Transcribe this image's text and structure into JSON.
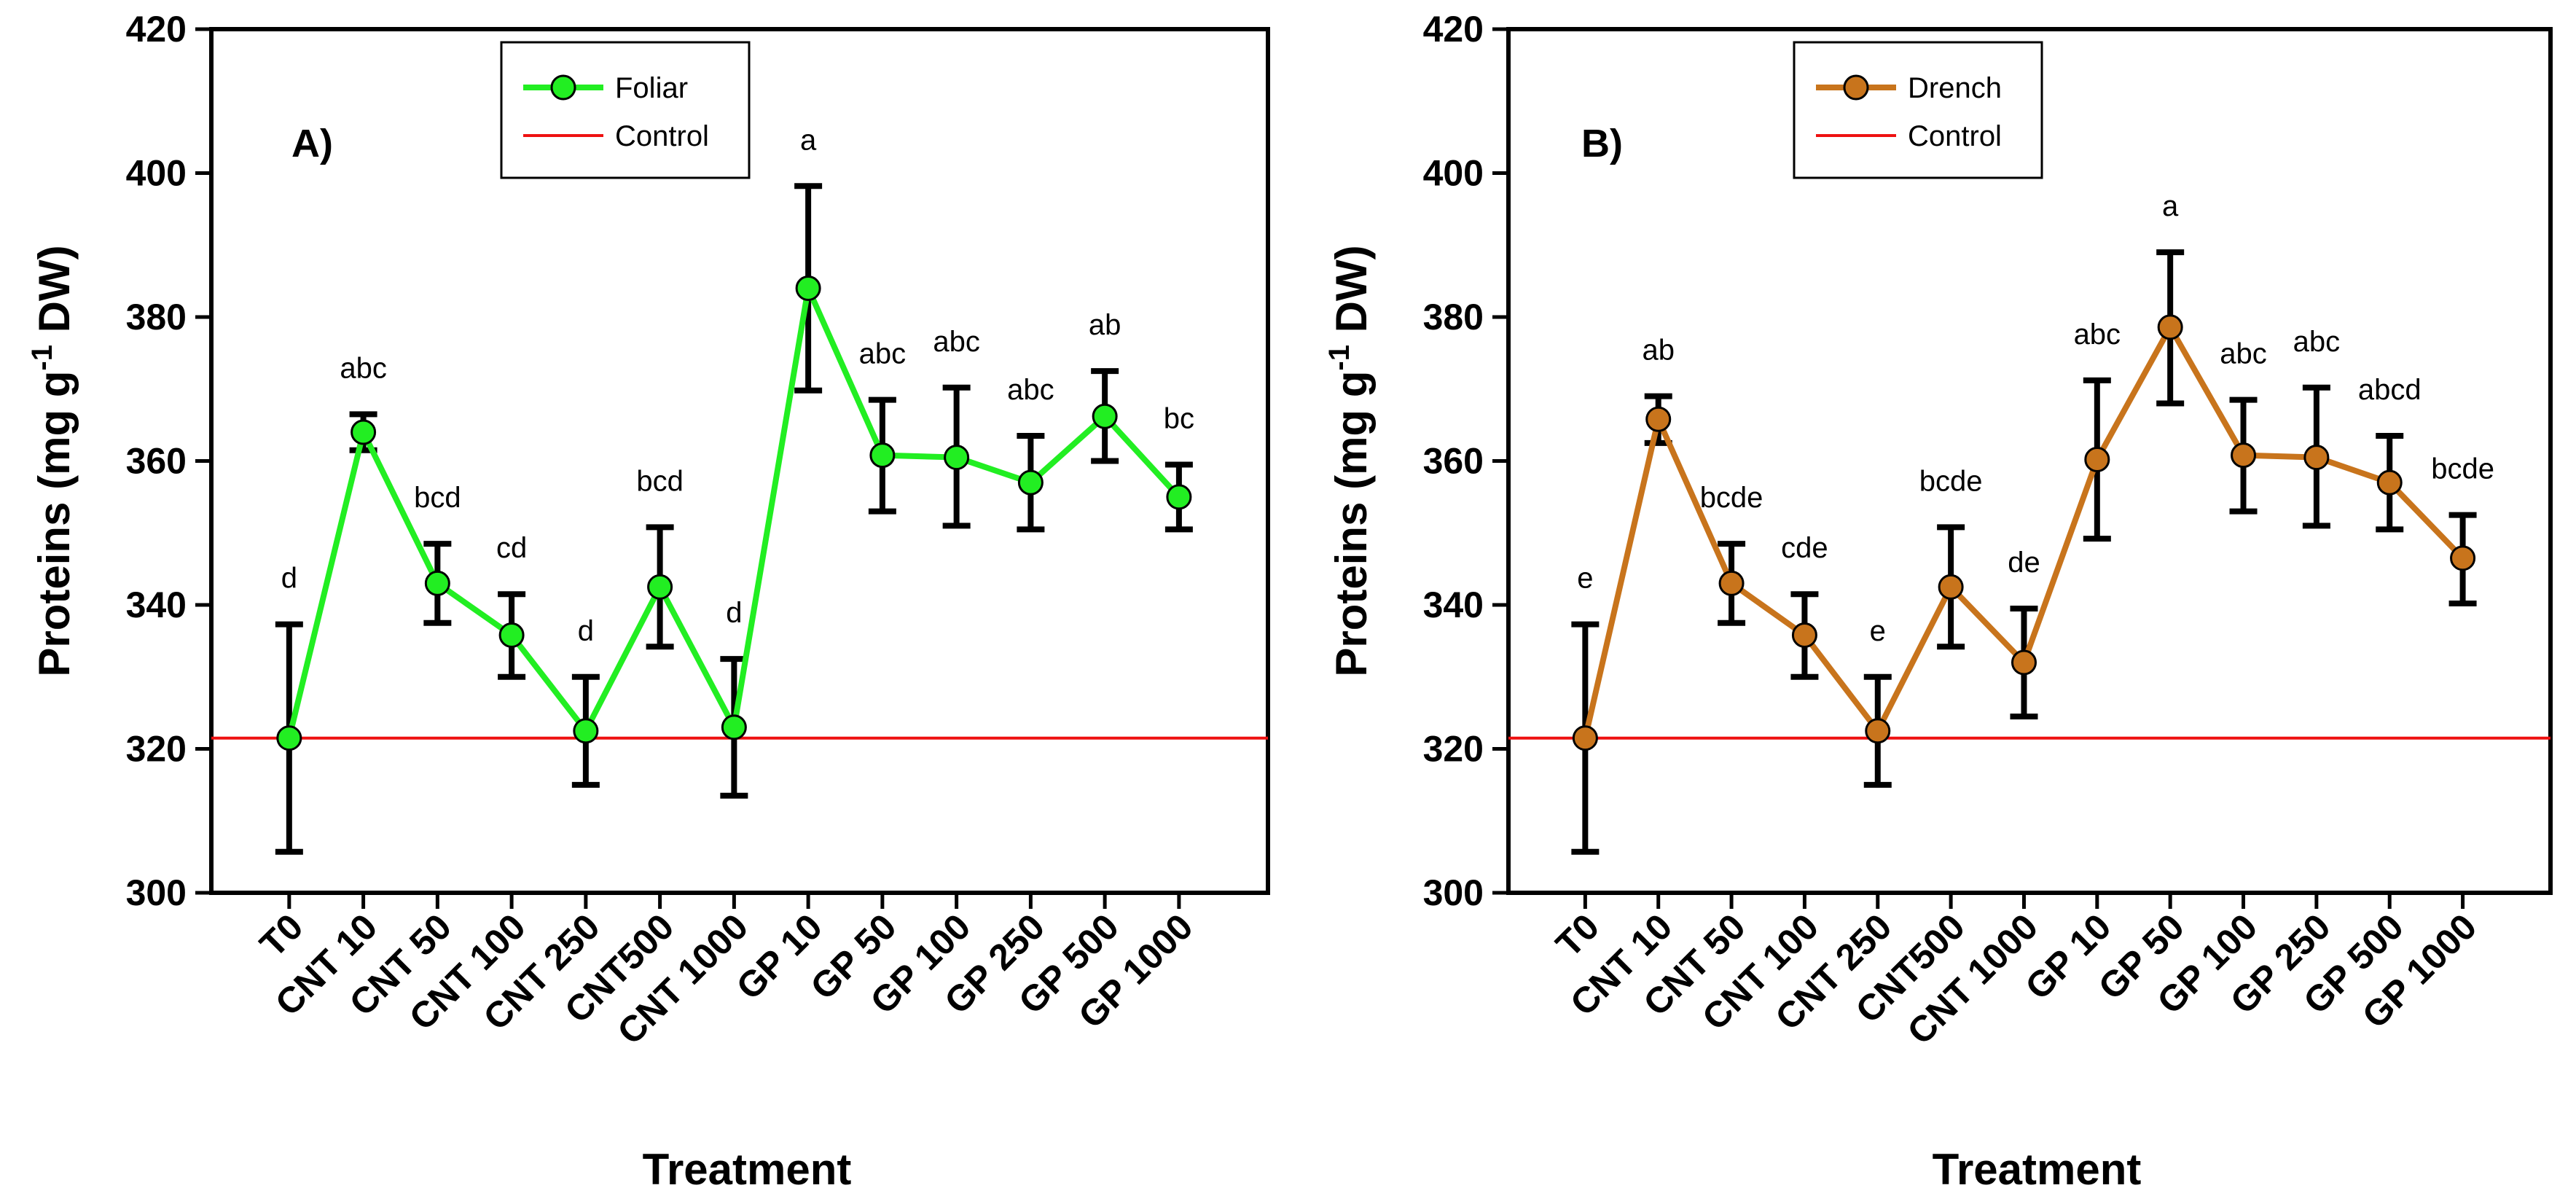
{
  "chart_data": [
    {
      "type": "line",
      "panel_label": "A)",
      "xlabel": "Treatment",
      "ylabel": "Proteins (mg g",
      "ylabel_sup": "-1",
      "ylabel_tail": " DW)",
      "ylim": [
        300,
        420
      ],
      "yticks": [
        "300",
        "320",
        "340",
        "360",
        "380",
        "400",
        "420"
      ],
      "categories": [
        "T0",
        "CNT 10",
        "CNT 50",
        "CNT 100",
        "CNT 250",
        "CNT500",
        "CNT 1000",
        "GP 10",
        "GP 50",
        "GP 100",
        "GP 250",
        "GP 500",
        "GP 1000"
      ],
      "series": [
        {
          "name": "Foliar",
          "color": "#22ee22",
          "values": [
            321.5,
            364.0,
            343.0,
            335.8,
            322.5,
            342.5,
            323.0,
            384.0,
            360.8,
            360.5,
            357.0,
            366.2,
            355.0
          ],
          "err_low": [
            305.7,
            361.5,
            337.5,
            330.0,
            315.0,
            334.2,
            313.5,
            369.8,
            353.0,
            351.0,
            350.5,
            360.0,
            350.5
          ],
          "err_high": [
            337.3,
            366.5,
            348.5,
            341.5,
            330.0,
            350.8,
            332.5,
            398.2,
            368.5,
            370.2,
            363.5,
            372.5,
            359.5
          ],
          "letters": [
            "d",
            "abc",
            "bcd",
            "cd",
            "d",
            "bcd",
            "d",
            "a",
            "abc",
            "abc",
            "abc",
            "ab",
            "bc"
          ]
        }
      ],
      "control": {
        "name": "Control",
        "value": 321.5,
        "color": "#ee1111"
      }
    },
    {
      "type": "line",
      "panel_label": "B)",
      "xlabel": "Treatment",
      "ylabel": "Proteins (mg g",
      "ylabel_sup": "-1",
      "ylabel_tail": " DW)",
      "ylim": [
        300,
        420
      ],
      "yticks": [
        "300",
        "320",
        "340",
        "360",
        "380",
        "400",
        "420"
      ],
      "categories": [
        "T0",
        "CNT 10",
        "CNT 50",
        "CNT 100",
        "CNT 250",
        "CNT500",
        "CNT 1000",
        "GP 10",
        "GP 50",
        "GP 100",
        "GP 250",
        "GP 500",
        "GP 1000"
      ],
      "series": [
        {
          "name": "Drench",
          "color": "#c8741c",
          "values": [
            321.5,
            365.8,
            343.0,
            335.8,
            322.5,
            342.5,
            332.0,
            360.2,
            378.6,
            360.8,
            360.5,
            357.0,
            346.5
          ],
          "err_low": [
            305.7,
            362.5,
            337.5,
            330.0,
            315.0,
            334.2,
            324.5,
            349.2,
            368.0,
            353.0,
            351.0,
            350.5,
            340.2
          ],
          "err_high": [
            337.3,
            369.0,
            348.5,
            341.5,
            330.0,
            350.8,
            339.5,
            371.2,
            389.0,
            368.5,
            370.2,
            363.5,
            352.5
          ],
          "letters": [
            "e",
            "ab",
            "bcde",
            "cde",
            "e",
            "bcde",
            "de",
            "abc",
            "a",
            "abc",
            "abc",
            "abcd",
            "bcde"
          ]
        }
      ],
      "control": {
        "name": "Control",
        "value": 321.5,
        "color": "#ee1111"
      }
    }
  ]
}
